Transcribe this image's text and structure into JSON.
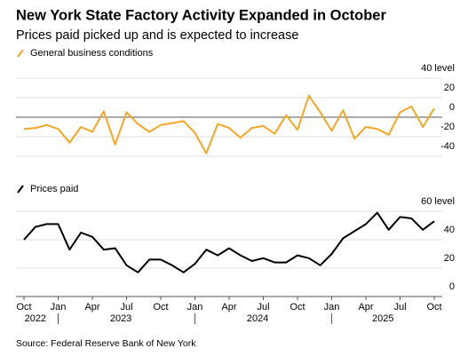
{
  "title": "New York State Factory Activity Expanded in October",
  "subtitle": "Prices paid picked up and is expected to increase",
  "source": "Source: Federal Reserve Bank of New York",
  "chart_data": [
    {
      "type": "line",
      "x": [
        "2022-10",
        "2022-11",
        "2022-12",
        "2023-01",
        "2023-02",
        "2023-03",
        "2023-04",
        "2023-05",
        "2023-06",
        "2023-07",
        "2023-08",
        "2023-09",
        "2023-10",
        "2023-11",
        "2023-12",
        "2024-01",
        "2024-02",
        "2024-03",
        "2024-04",
        "2024-05",
        "2024-06",
        "2024-07",
        "2024-08",
        "2024-09",
        "2024-10",
        "2024-11",
        "2024-12",
        "2025-01",
        "2025-02",
        "2025-03",
        "2025-04",
        "2025-05",
        "2025-06",
        "2025-07",
        "2025-08",
        "2025-09",
        "2025-10"
      ],
      "series": [
        {
          "name": "General business conditions",
          "color": "#f5a623",
          "values": [
            -12,
            -11,
            -8,
            -12,
            -26,
            -10,
            -15,
            6,
            -28,
            5,
            -7,
            -15,
            -8,
            -6,
            -4,
            -16,
            -37,
            -7,
            -11,
            -21,
            -11,
            -9,
            -17,
            2,
            -13,
            22,
            5,
            -14,
            7,
            -22,
            -10,
            -12,
            -18,
            5,
            11,
            -10,
            9
          ]
        }
      ],
      "ylim": [
        -45,
        45
      ],
      "yticks": [
        {
          "value": 40,
          "label": "40 level"
        },
        20,
        0,
        -20,
        -40
      ],
      "grid": true
    },
    {
      "type": "line",
      "x": [
        "2022-10",
        "2022-11",
        "2022-12",
        "2023-01",
        "2023-02",
        "2023-03",
        "2023-04",
        "2023-05",
        "2023-06",
        "2023-07",
        "2023-08",
        "2023-09",
        "2023-10",
        "2023-11",
        "2023-12",
        "2024-01",
        "2024-02",
        "2024-03",
        "2024-04",
        "2024-05",
        "2024-06",
        "2024-07",
        "2024-08",
        "2024-09",
        "2024-10",
        "2024-11",
        "2024-12",
        "2025-01",
        "2025-02",
        "2025-03",
        "2025-04",
        "2025-05",
        "2025-06",
        "2025-07",
        "2025-08",
        "2025-09",
        "2025-10"
      ],
      "series": [
        {
          "name": "Prices paid",
          "color": "#000000",
          "values": [
            40,
            49,
            51,
            51,
            33,
            45,
            42,
            33,
            34,
            22,
            17,
            26,
            26,
            22,
            17,
            23,
            33,
            29,
            34,
            29,
            25,
            27,
            24,
            24,
            29,
            27,
            22,
            30,
            41,
            46,
            51,
            59,
            47,
            56,
            55,
            47,
            53
          ]
        }
      ],
      "ylim": [
        0,
        60
      ],
      "yticks": [
        {
          "value": 60,
          "label": "60 level"
        },
        40,
        20,
        0
      ],
      "grid": true,
      "xticks": [
        {
          "value": "2022-10",
          "label": "Oct"
        },
        {
          "value": "2023-01",
          "label": "Jan"
        },
        {
          "value": "2023-04",
          "label": "Apr"
        },
        {
          "value": "2023-07",
          "label": "Jul"
        },
        {
          "value": "2023-10",
          "label": "Oct"
        },
        {
          "value": "2024-01",
          "label": "Jan"
        },
        {
          "value": "2024-04",
          "label": "Apr"
        },
        {
          "value": "2024-07",
          "label": "Jul"
        },
        {
          "value": "2024-10",
          "label": "Oct"
        },
        {
          "value": "2025-01",
          "label": "Jan"
        },
        {
          "value": "2025-04",
          "label": "Apr"
        },
        {
          "value": "2025-07",
          "label": "Jul"
        },
        {
          "value": "2025-10",
          "label": "Oct"
        }
      ],
      "years": [
        "2022",
        "2023",
        "2024",
        "2025"
      ]
    }
  ]
}
